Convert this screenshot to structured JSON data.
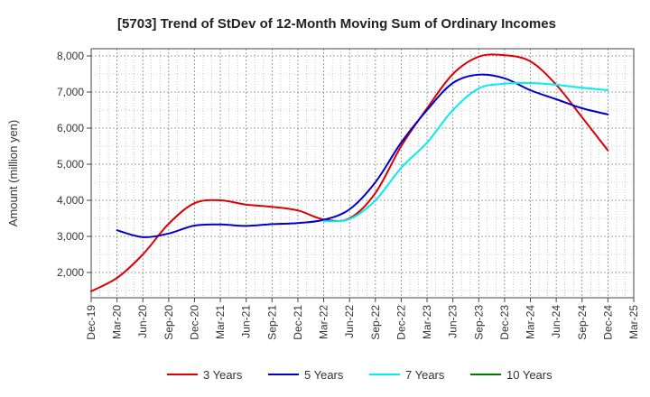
{
  "chart_data": {
    "type": "line",
    "title": "[5703]  Trend of StDev of 12-Month Moving Sum of Ordinary Incomes",
    "xlabel": "",
    "ylabel": "Amount (million yen)",
    "ylim": [
      1300,
      8200
    ],
    "yticks": [
      2000,
      3000,
      4000,
      5000,
      6000,
      7000,
      8000
    ],
    "ytick_labels": [
      "2,000",
      "3,000",
      "4,000",
      "5,000",
      "6,000",
      "7,000",
      "8,000"
    ],
    "xtick_labels": [
      "Dec-19",
      "Mar-20",
      "Jun-20",
      "Sep-20",
      "Dec-20",
      "Mar-21",
      "Jun-21",
      "Sep-21",
      "Dec-21",
      "Mar-22",
      "Jun-22",
      "Sep-22",
      "Dec-22",
      "Mar-23",
      "Jun-23",
      "Sep-23",
      "Dec-23",
      "Mar-24",
      "Jun-24",
      "Sep-24",
      "Dec-24",
      "Mar-25"
    ],
    "grid": true,
    "legend_position": "bottom",
    "series": [
      {
        "name": "3 Years",
        "color": "#dd0000",
        "start_index": 0,
        "values": [
          1480,
          1850,
          2500,
          3350,
          3920,
          4000,
          3880,
          3820,
          3720,
          3470,
          3500,
          4200,
          5500,
          6550,
          7500,
          7980,
          8020,
          7850,
          7200,
          6300,
          5380
        ]
      },
      {
        "name": "5 Years",
        "color": "#0000cc",
        "start_index": 1,
        "values": [
          3170,
          2980,
          3080,
          3300,
          3330,
          3290,
          3340,
          3370,
          3460,
          3750,
          4500,
          5600,
          6500,
          7250,
          7480,
          7380,
          7050,
          6800,
          6550,
          6380
        ]
      },
      {
        "name": "7 Years",
        "color": "#00eeee",
        "start_index": 9,
        "values": [
          3420,
          3480,
          4000,
          4900,
          5600,
          6500,
          7100,
          7230,
          7250,
          7200,
          7120,
          7050
        ]
      },
      {
        "name": "10 Years",
        "color": "#007700",
        "start_index": 0,
        "values": []
      }
    ]
  }
}
